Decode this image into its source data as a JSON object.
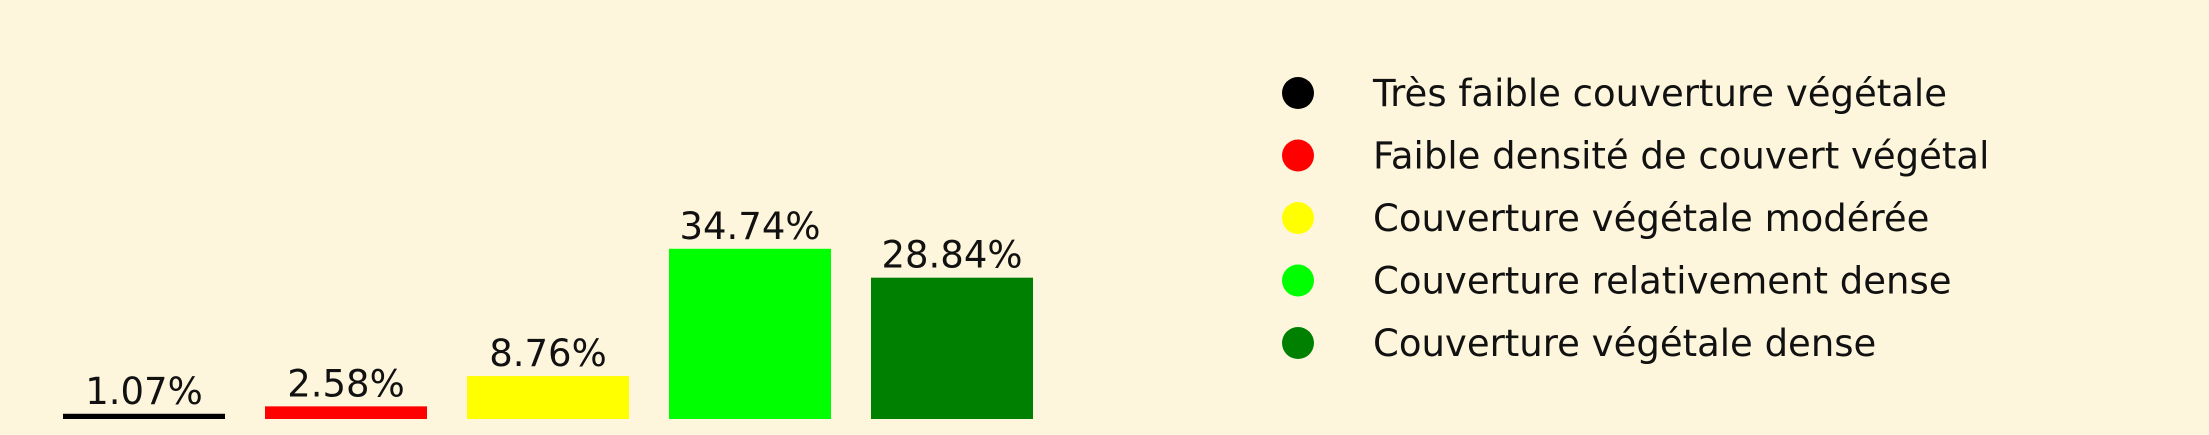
{
  "chart_data": {
    "type": "bar",
    "title": "",
    "xlabel": "",
    "ylabel": "",
    "ylim": [
      0,
      45
    ],
    "grid": false,
    "legend_position": "right",
    "background_color": "#fdf6dc",
    "categories": [
      "Très faible couverture végétale",
      "Faible densité de couvert végétal",
      "Couverture végétale modérée",
      "Couverture relativement dense",
      "Couverture végétale dense"
    ],
    "values": [
      1.07,
      2.58,
      8.76,
      34.74,
      28.84
    ],
    "labels": [
      "1.07%",
      "2.58%",
      "8.76%",
      "34.74%",
      "28.84%"
    ],
    "colors": [
      "#000000",
      "#ff0000",
      "#ffff00",
      "#00ff00",
      "#008000"
    ]
  }
}
